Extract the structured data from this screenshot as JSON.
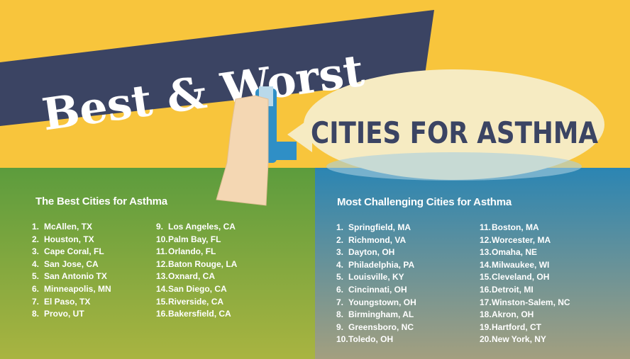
{
  "title": {
    "line1": "Best & Worst",
    "line2": "CITIES FOR ASTHMA"
  },
  "colors": {
    "yellow": "#f8c53c",
    "navy": "#3b4463",
    "bubble": "#f6ebc2",
    "green": "#5c9c3d",
    "blue": "#2b85b3",
    "inhaler": "#2f8fc6",
    "hand": "#f4d7b3"
  },
  "best": {
    "heading": "The Best Cities for Asthma",
    "col1": [
      {
        "n": "1.",
        "city": "McAllen, TX"
      },
      {
        "n": "2.",
        "city": "Houston, TX"
      },
      {
        "n": "3.",
        "city": "Cape Coral, FL"
      },
      {
        "n": "4.",
        "city": "San Jose, CA"
      },
      {
        "n": "5.",
        "city": "San Antonio TX"
      },
      {
        "n": "6.",
        "city": "Minneapolis, MN"
      },
      {
        "n": "7.",
        "city": "El Paso, TX"
      },
      {
        "n": "8.",
        "city": "Provo, UT"
      }
    ],
    "col2": [
      {
        "n": "9.",
        "city": "Los Angeles, CA"
      },
      {
        "n": "10.",
        "city": "Palm Bay, FL"
      },
      {
        "n": "11.",
        "city": "Orlando, FL"
      },
      {
        "n": "12.",
        "city": "Baton Rouge, LA"
      },
      {
        "n": "13.",
        "city": "Oxnard, CA"
      },
      {
        "n": "14.",
        "city": "San Diego, CA"
      },
      {
        "n": "15.",
        "city": "Riverside, CA"
      },
      {
        "n": "16.",
        "city": "Bakersfield, CA"
      }
    ]
  },
  "worst": {
    "heading": "Most Challenging Cities for Asthma",
    "col1": [
      {
        "n": "1.",
        "city": "Springfield, MA"
      },
      {
        "n": "2.",
        "city": "Richmond, VA"
      },
      {
        "n": "3.",
        "city": "Dayton, OH"
      },
      {
        "n": "4.",
        "city": "Philadelphia, PA"
      },
      {
        "n": "5.",
        "city": "Louisville, KY"
      },
      {
        "n": "6.",
        "city": "Cincinnati, OH"
      },
      {
        "n": "7.",
        "city": "Youngstown, OH"
      },
      {
        "n": "8.",
        "city": "Birmingham, AL"
      },
      {
        "n": "9.",
        "city": "Greensboro, NC"
      },
      {
        "n": "10.",
        "city": "Toledo, OH"
      }
    ],
    "col2": [
      {
        "n": "11.",
        "city": "Boston, MA"
      },
      {
        "n": "12.",
        "city": "Worcester, MA"
      },
      {
        "n": "13.",
        "city": "Omaha, NE"
      },
      {
        "n": "14.",
        "city": "Milwaukee, WI"
      },
      {
        "n": "15.",
        "city": "Cleveland, OH"
      },
      {
        "n": "16.",
        "city": "Detroit, MI"
      },
      {
        "n": "17.",
        "city": "Winston-Salem, NC"
      },
      {
        "n": "18.",
        "city": "Akron, OH"
      },
      {
        "n": "19.",
        "city": "Hartford, CT"
      },
      {
        "n": "20.",
        "city": "New York, NY"
      }
    ]
  }
}
